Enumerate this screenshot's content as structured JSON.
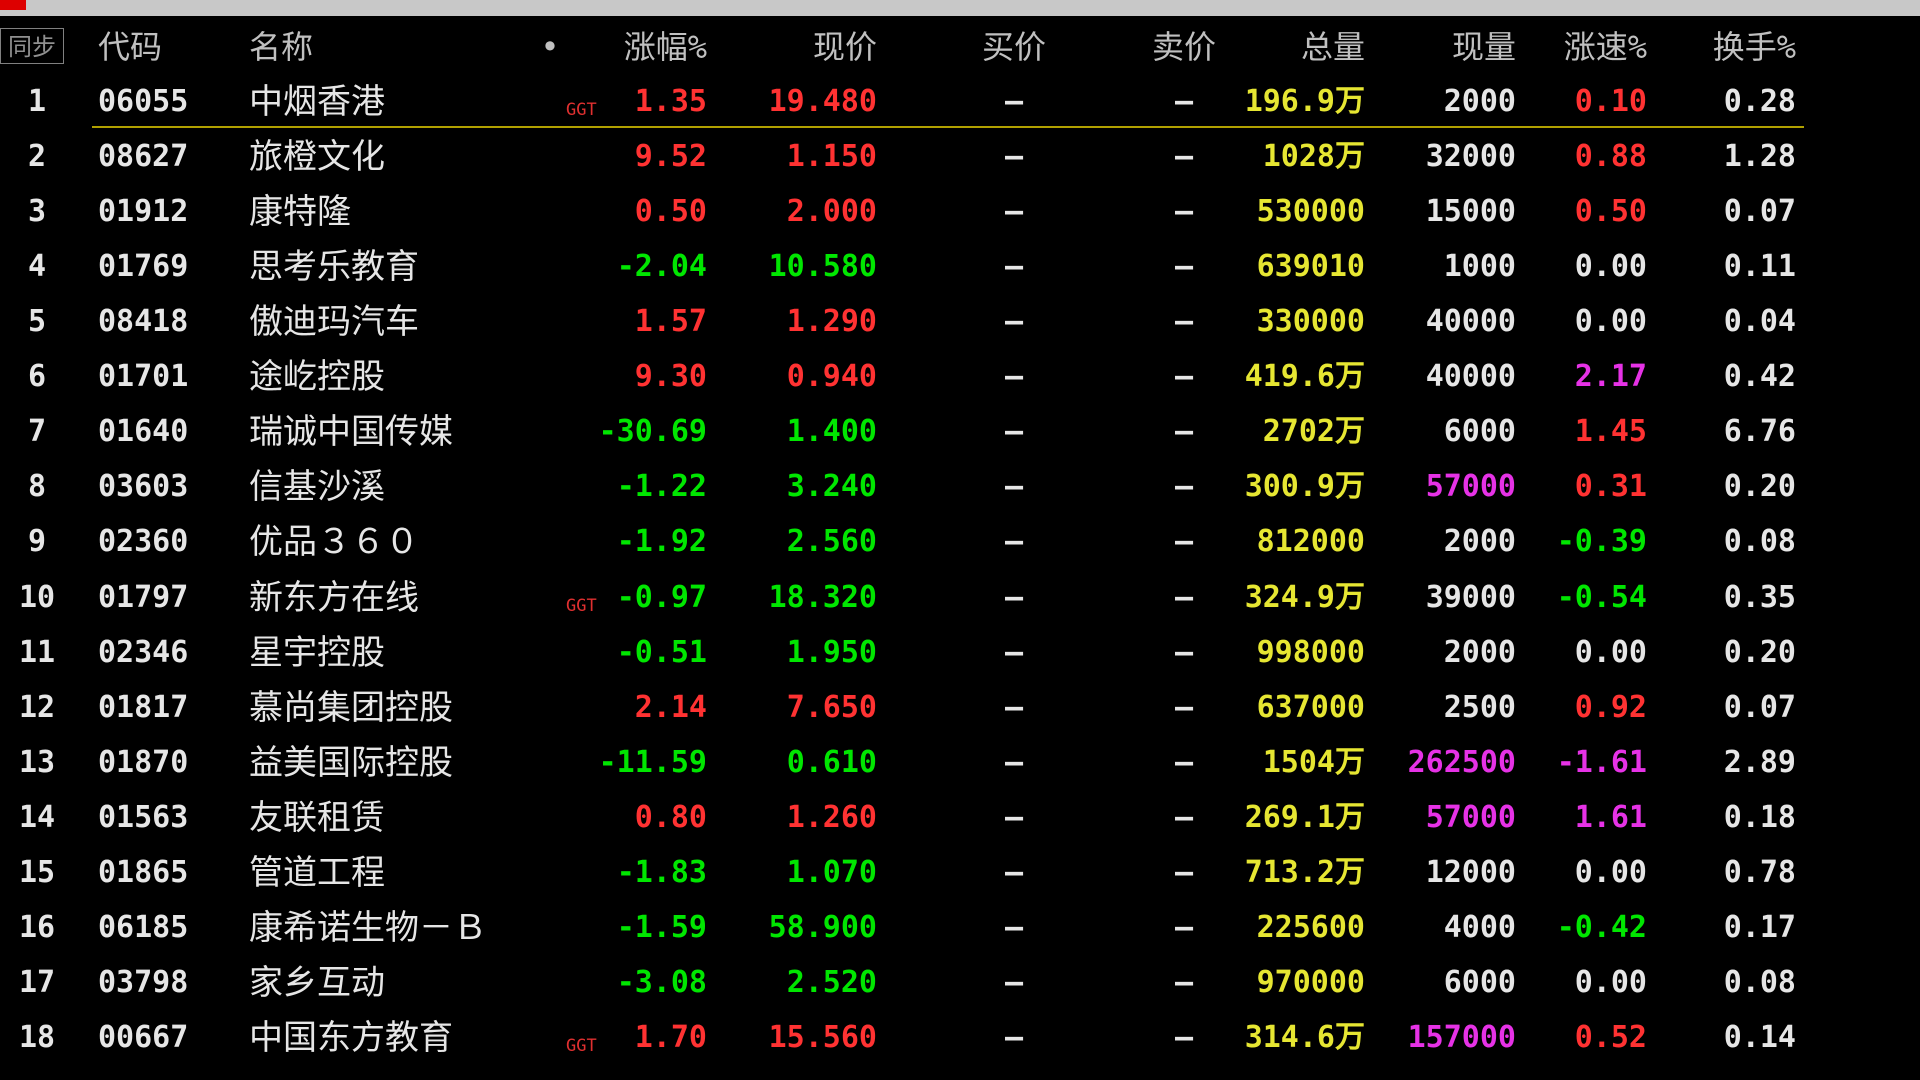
{
  "header": {
    "sync": "同步",
    "columns": [
      "代码",
      "名称",
      "•",
      "涨幅%",
      "现价",
      "买价",
      "卖价",
      "总量",
      "现量",
      "涨速%",
      "换手%"
    ]
  },
  "table": {
    "rows": [
      {
        "index": "1",
        "code": "06055",
        "name": "中烟香港",
        "tag": "GGT",
        "change": "1.35",
        "price": "19.480",
        "bid": "—",
        "ask": "—",
        "volume": "196.9万",
        "current": "2000",
        "speed": "0.10",
        "turnover": "0.28"
      },
      {
        "index": "2",
        "code": "08627",
        "name": "旅橙文化",
        "change": "9.52",
        "price": "1.150",
        "bid": "—",
        "ask": "—",
        "volume": "1028万",
        "current": "32000",
        "speed": "0.88",
        "turnover": "1.28"
      },
      {
        "index": "3",
        "code": "01912",
        "name": "康特隆",
        "change": "0.50",
        "price": "2.000",
        "bid": "—",
        "ask": "—",
        "volume": "530000",
        "current": "15000",
        "speed": "0.50",
        "turnover": "0.07"
      },
      {
        "index": "4",
        "code": "01769",
        "name": "思考乐教育",
        "change": "-2.04",
        "price": "10.580",
        "bid": "—",
        "ask": "—",
        "volume": "639010",
        "current": "1000",
        "speed": "0.00",
        "turnover": "0.11"
      },
      {
        "index": "5",
        "code": "08418",
        "name": "傲迪玛汽车",
        "change": "1.57",
        "price": "1.290",
        "bid": "—",
        "ask": "—",
        "volume": "330000",
        "current": "40000",
        "speed": "0.00",
        "turnover": "0.04"
      },
      {
        "index": "6",
        "code": "01701",
        "name": "途屹控股",
        "change": "9.30",
        "price": "0.940",
        "bid": "—",
        "ask": "—",
        "volume": "419.6万",
        "current": "40000",
        "speed": "2.17",
        "turnover": "0.42"
      },
      {
        "index": "7",
        "code": "01640",
        "name": "瑞诚中国传媒",
        "change": "-30.69",
        "price": "1.400",
        "bid": "—",
        "ask": "—",
        "volume": "2702万",
        "current": "6000",
        "speed": "1.45",
        "turnover": "6.76"
      },
      {
        "index": "8",
        "code": "03603",
        "name": "信基沙溪",
        "change": "-1.22",
        "price": "3.240",
        "bid": "—",
        "ask": "—",
        "volume": "300.9万",
        "current": "57000",
        "speed": "0.31",
        "turnover": "0.20"
      },
      {
        "index": "9",
        "code": "02360",
        "name": "优品３６０",
        "change": "-1.92",
        "price": "2.560",
        "bid": "—",
        "ask": "—",
        "volume": "812000",
        "current": "2000",
        "speed": "-0.39",
        "turnover": "0.08"
      },
      {
        "index": "10",
        "code": "01797",
        "name": "新东方在线",
        "tag": "GGT",
        "change": "-0.97",
        "price": "18.320",
        "bid": "—",
        "ask": "—",
        "volume": "324.9万",
        "current": "39000",
        "speed": "-0.54",
        "turnover": "0.35"
      },
      {
        "index": "11",
        "code": "02346",
        "name": "星宇控股",
        "change": "-0.51",
        "price": "1.950",
        "bid": "—",
        "ask": "—",
        "volume": "998000",
        "current": "2000",
        "speed": "0.00",
        "turnover": "0.20"
      },
      {
        "index": "12",
        "code": "01817",
        "name": "慕尚集团控股",
        "change": "2.14",
        "price": "7.650",
        "bid": "—",
        "ask": "—",
        "volume": "637000",
        "current": "2500",
        "speed": "0.92",
        "turnover": "0.07"
      },
      {
        "index": "13",
        "code": "01870",
        "name": "益美国际控股",
        "change": "-11.59",
        "price": "0.610",
        "bid": "—",
        "ask": "—",
        "volume": "1504万",
        "current": "262500",
        "speed": "-1.61",
        "turnover": "2.89"
      },
      {
        "index": "14",
        "code": "01563",
        "name": "友联租赁",
        "change": "0.80",
        "price": "1.260",
        "bid": "—",
        "ask": "—",
        "volume": "269.1万",
        "current": "57000",
        "speed": "1.61",
        "turnover": "0.18"
      },
      {
        "index": "15",
        "code": "01865",
        "name": "管道工程",
        "change": "-1.83",
        "price": "1.070",
        "bid": "—",
        "ask": "—",
        "volume": "713.2万",
        "current": "12000",
        "speed": "0.00",
        "turnover": "0.78"
      },
      {
        "index": "16",
        "code": "06185",
        "name": "康希诺生物－Ｂ",
        "change": "-1.59",
        "price": "58.900",
        "bid": "—",
        "ask": "—",
        "volume": "225600",
        "current": "4000",
        "speed": "-0.42",
        "turnover": "0.17"
      },
      {
        "index": "17",
        "code": "03798",
        "name": "家乡互动",
        "change": "-3.08",
        "price": "2.520",
        "bid": "—",
        "ask": "—",
        "volume": "970000",
        "current": "6000",
        "speed": "0.00",
        "turnover": "0.08"
      },
      {
        "index": "18",
        "code": "00667",
        "name": "中国东方教育",
        "tag": "GGT",
        "change": "1.70",
        "price": "15.560",
        "bid": "—",
        "ask": "—",
        "volume": "314.6万",
        "current": "157000",
        "speed": "0.52",
        "turnover": "0.14"
      }
    ]
  }
}
